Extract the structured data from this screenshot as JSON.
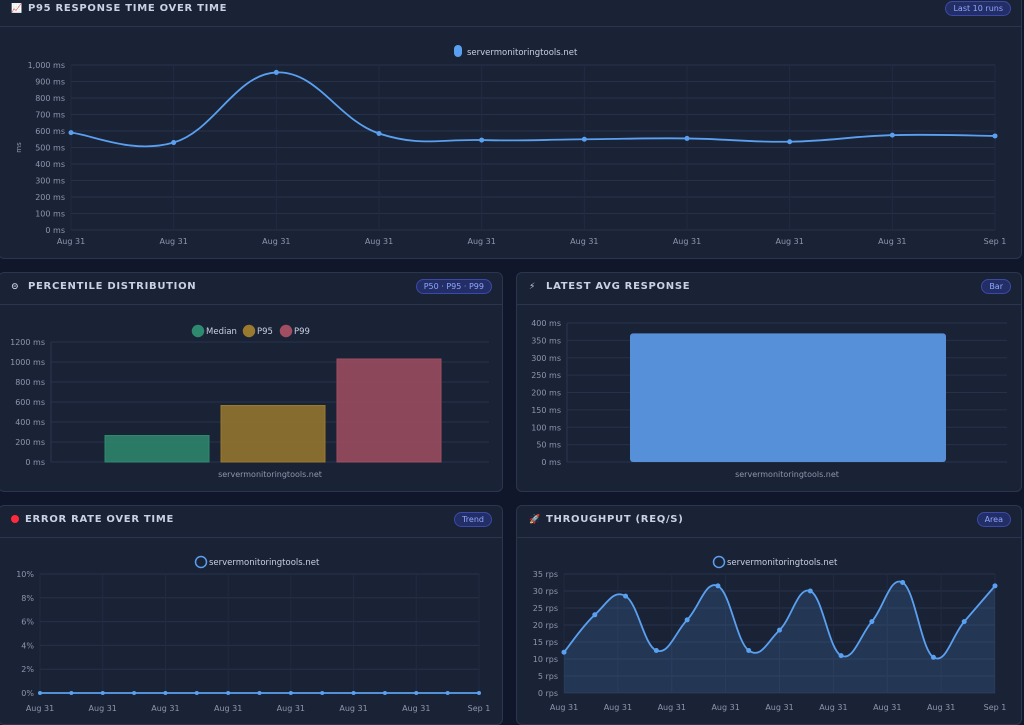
{
  "panels": {
    "p95": {
      "title": "P95 RESPONSE TIME OVER TIME",
      "icon": "📈",
      "badge": "Last 10 runs"
    },
    "percentile": {
      "title": "PERCENTILE DISTRIBUTION",
      "icon": "⊝",
      "badge": "P50 · P95 · P99"
    },
    "latest": {
      "title": "LATEST AVG RESPONSE",
      "icon": "⚡",
      "badge": "Bar"
    },
    "error": {
      "title": "ERROR RATE OVER TIME",
      "icon": "red-dot",
      "badge": "Trend"
    },
    "throughput": {
      "title": "THROUGHPUT (REQ/S)",
      "icon": "🚀",
      "badge": "Area"
    }
  },
  "colors": {
    "line": "#5aa0f0",
    "bar_blue": "#5590d8",
    "median": "#2e8a6e",
    "p95": "#9a7a2e",
    "p99": "#a14d62"
  },
  "chart_data": [
    {
      "id": "p95",
      "type": "line",
      "ylabel": "ms",
      "ylim": [
        0,
        1000
      ],
      "yticks": [
        "0 ms",
        "100 ms",
        "200 ms",
        "300 ms",
        "400 ms",
        "500 ms",
        "600 ms",
        "700 ms",
        "800 ms",
        "900 ms",
        "1,000 ms"
      ],
      "categories": [
        "Aug 31",
        "Aug 31",
        "Aug 31",
        "Aug 31",
        "Aug 31",
        "Aug 31",
        "Aug 31",
        "Aug 31",
        "Aug 31",
        "Sep 1"
      ],
      "series": [
        {
          "name": "servermonitoringtools.net",
          "values": [
            590,
            530,
            955,
            585,
            545,
            550,
            555,
            535,
            575,
            570
          ]
        }
      ],
      "legend": "top-center",
      "grid": true
    },
    {
      "id": "percentile",
      "type": "bar",
      "ylim": [
        0,
        1200
      ],
      "yticks": [
        "0 ms",
        "200 ms",
        "400 ms",
        "600 ms",
        "800 ms",
        "1000 ms",
        "1200 ms"
      ],
      "categories": [
        "servermonitoringtools.net"
      ],
      "series": [
        {
          "name": "Median",
          "values": [
            265
          ]
        },
        {
          "name": "P95",
          "values": [
            565
          ]
        },
        {
          "name": "P99",
          "values": [
            1030
          ]
        }
      ],
      "legend": "top-center",
      "grid": true
    },
    {
      "id": "latest",
      "type": "bar",
      "ylim": [
        0,
        400
      ],
      "yticks": [
        "0 ms",
        "50 ms",
        "100 ms",
        "150 ms",
        "200 ms",
        "250 ms",
        "300 ms",
        "350 ms",
        "400 ms"
      ],
      "categories": [
        "servermonitoringtools.net"
      ],
      "values": [
        370
      ],
      "grid": true
    },
    {
      "id": "error",
      "type": "line",
      "ylim": [
        0,
        10
      ],
      "yticks": [
        "0%",
        "2%",
        "4%",
        "6%",
        "8%",
        "10%"
      ],
      "xticks": [
        "Aug 31",
        "Aug 31",
        "Aug 31",
        "Aug 31",
        "Aug 31",
        "Aug 31",
        "Aug 31",
        "Sep 1"
      ],
      "series": [
        {
          "name": "servermonitoringtools.net",
          "values": [
            0,
            0,
            0,
            0,
            0,
            0,
            0,
            0,
            0,
            0,
            0,
            0,
            0,
            0,
            0
          ]
        }
      ],
      "legend": "top-center",
      "grid": true
    },
    {
      "id": "throughput",
      "type": "area",
      "ylim": [
        0,
        35
      ],
      "yticks": [
        "0 rps",
        "5 rps",
        "10 rps",
        "15 rps",
        "20 rps",
        "25 rps",
        "30 rps",
        "35 rps"
      ],
      "xticks": [
        "Aug 31",
        "Aug 31",
        "Aug 31",
        "Aug 31",
        "Aug 31",
        "Aug 31",
        "Aug 31",
        "Aug 31",
        "Sep 1"
      ],
      "series": [
        {
          "name": "servermonitoringtools.net",
          "values": [
            12,
            23,
            28.5,
            12.5,
            21.5,
            31.5,
            12.5,
            18.5,
            30,
            11,
            21,
            32.5,
            10.5,
            21,
            31.5
          ]
        }
      ],
      "legend": "top-center",
      "grid": true
    }
  ]
}
